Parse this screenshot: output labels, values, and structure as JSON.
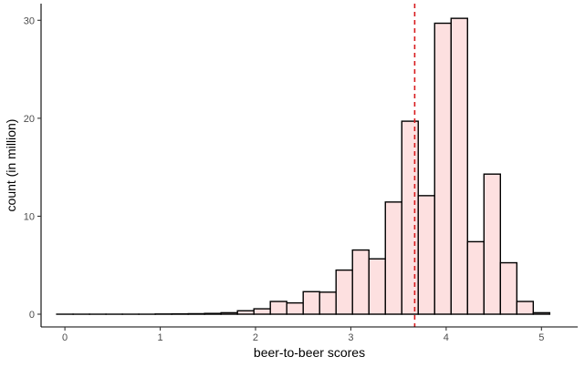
{
  "chart_data": {
    "type": "bar",
    "subtype": "histogram",
    "xlabel": "beer-to-beer scores",
    "ylabel": "count (in million)",
    "xlim": [
      -0.25,
      5.38
    ],
    "ylim": [
      -1.3,
      31.7
    ],
    "xticks": [
      0,
      1,
      2,
      3,
      4,
      5
    ],
    "yticks": [
      0,
      10,
      20,
      30
    ],
    "bin_width": 0.1724,
    "bins": [
      {
        "center": 0.0,
        "count": 0.0
      },
      {
        "center": 0.1724,
        "count": 0.0
      },
      {
        "center": 0.3448,
        "count": 0.0
      },
      {
        "center": 0.5172,
        "count": 0.0
      },
      {
        "center": 0.6897,
        "count": 0.0
      },
      {
        "center": 0.8621,
        "count": 0.0
      },
      {
        "center": 1.0345,
        "count": 0.02
      },
      {
        "center": 1.2069,
        "count": 0.03
      },
      {
        "center": 1.3793,
        "count": 0.05
      },
      {
        "center": 1.5517,
        "count": 0.08
      },
      {
        "center": 1.7241,
        "count": 0.15
      },
      {
        "center": 1.8966,
        "count": 0.35
      },
      {
        "center": 2.069,
        "count": 0.55
      },
      {
        "center": 2.2414,
        "count": 1.3
      },
      {
        "center": 2.4138,
        "count": 1.15
      },
      {
        "center": 2.5862,
        "count": 2.3
      },
      {
        "center": 2.7586,
        "count": 2.25
      },
      {
        "center": 2.931,
        "count": 4.5
      },
      {
        "center": 3.1034,
        "count": 6.55
      },
      {
        "center": 3.2759,
        "count": 5.65
      },
      {
        "center": 3.4483,
        "count": 11.45
      },
      {
        "center": 3.6207,
        "count": 19.7
      },
      {
        "center": 3.7931,
        "count": 12.1
      },
      {
        "center": 3.9655,
        "count": 29.7
      },
      {
        "center": 4.1379,
        "count": 30.2
      },
      {
        "center": 4.3103,
        "count": 7.4
      },
      {
        "center": 4.4828,
        "count": 14.3
      },
      {
        "center": 4.6552,
        "count": 5.25
      },
      {
        "center": 4.8276,
        "count": 1.3
      },
      {
        "center": 5.0,
        "count": 0.15
      }
    ],
    "reference_line": {
      "x": 3.67,
      "style": "dashed",
      "color": "#d7191c"
    },
    "bar_fill": "#fde0e0",
    "bar_stroke": "#000000",
    "grid": false,
    "legend": "none"
  }
}
